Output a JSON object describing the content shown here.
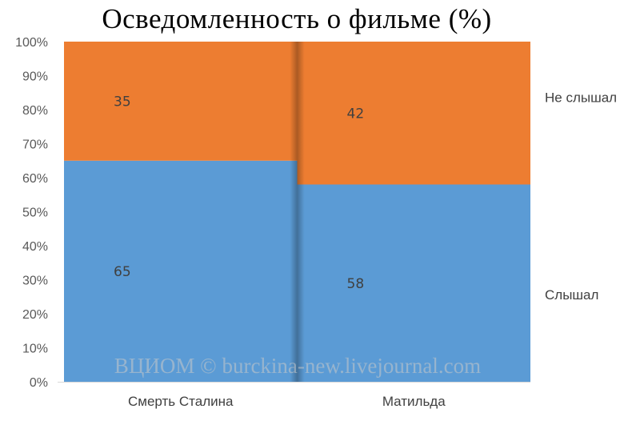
{
  "chart_data": {
    "type": "bar",
    "stacked": true,
    "percent": true,
    "title": "Осведомленность о фильме (%)",
    "categories": [
      "Смерть Сталина",
      "Матильда"
    ],
    "series": [
      {
        "name": "Слышал",
        "values": [
          65,
          58
        ],
        "color": "#5b9bd5"
      },
      {
        "name": "Не слышал",
        "values": [
          35,
          42
        ],
        "color": "#ed7d31"
      }
    ],
    "y_ticks": [
      "0%",
      "10%",
      "20%",
      "30%",
      "40%",
      "50%",
      "60%",
      "70%",
      "80%",
      "90%",
      "100%"
    ],
    "ylim": [
      0,
      100
    ],
    "grid": false,
    "legend_position": "right"
  },
  "watermark": "ВЦИОМ © burckina-new.livejournal.com"
}
